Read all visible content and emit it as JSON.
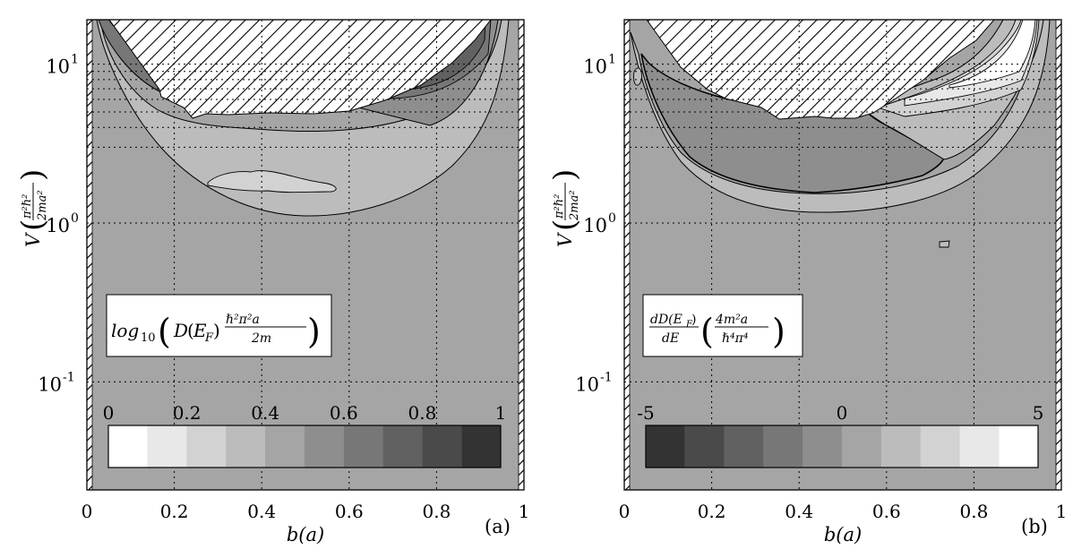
{
  "chart_data": [
    {
      "type": "heatmap",
      "panel_label": "(a)",
      "xlabel": "b(a)",
      "ylabel": "V (π²ℏ²/2ma²)",
      "x_ticks": [
        "0",
        "0.2",
        "0.4",
        "0.6",
        "0.8",
        "1"
      ],
      "y_ticks": [
        "10-1",
        "100",
        "101"
      ],
      "xlim": [
        0,
        1
      ],
      "ylim_log10": [
        -1.68,
        1.28
      ],
      "y_scale": "log",
      "grid": true,
      "inset_title": "log10(D(EF) ℏ²π²a / 2m)",
      "colorbar": {
        "tick_labels": [
          "0",
          "0.2",
          "0.4",
          "0.6",
          "0.8",
          "1"
        ],
        "levels": [
          0,
          0.1,
          0.2,
          0.3,
          0.4,
          0.5,
          0.6,
          0.7,
          0.8,
          0.9,
          1
        ],
        "colors": [
          "#ffffff",
          "#e8e8e8",
          "#d2d2d2",
          "#bcbcbc",
          "#a5a5a5",
          "#8e8e8e",
          "#777777",
          "#616161",
          "#4a4a4a",
          "#333333"
        ]
      },
      "background_level_color": "#a5a5a5",
      "excluded_region": "hatched"
    },
    {
      "type": "heatmap",
      "panel_label": "(b)",
      "xlabel": "b(a)",
      "ylabel": "V (π²ℏ²/2ma²)",
      "x_ticks": [
        "0",
        "0.2",
        "0.4",
        "0.6",
        "0.8",
        "1"
      ],
      "y_ticks": [
        "10-1",
        "100",
        "101"
      ],
      "xlim": [
        0,
        1
      ],
      "ylim_log10": [
        -1.68,
        1.28
      ],
      "y_scale": "log",
      "grid": true,
      "inset_title": "dD(EF)/dE (4m²a / ℏ⁴π⁴)",
      "colorbar": {
        "tick_labels": [
          "-5",
          "0",
          "5"
        ],
        "levels": [
          -5,
          -4,
          -3,
          -2,
          -1,
          0,
          1,
          2,
          3,
          4,
          5
        ],
        "colors": [
          "#333333",
          "#4a4a4a",
          "#616161",
          "#777777",
          "#8e8e8e",
          "#a5a5a5",
          "#bcbcbc",
          "#d2d2d2",
          "#e8e8e8",
          "#ffffff"
        ]
      },
      "background_level_color": "#a5a5a5",
      "excluded_region": "hatched"
    }
  ]
}
